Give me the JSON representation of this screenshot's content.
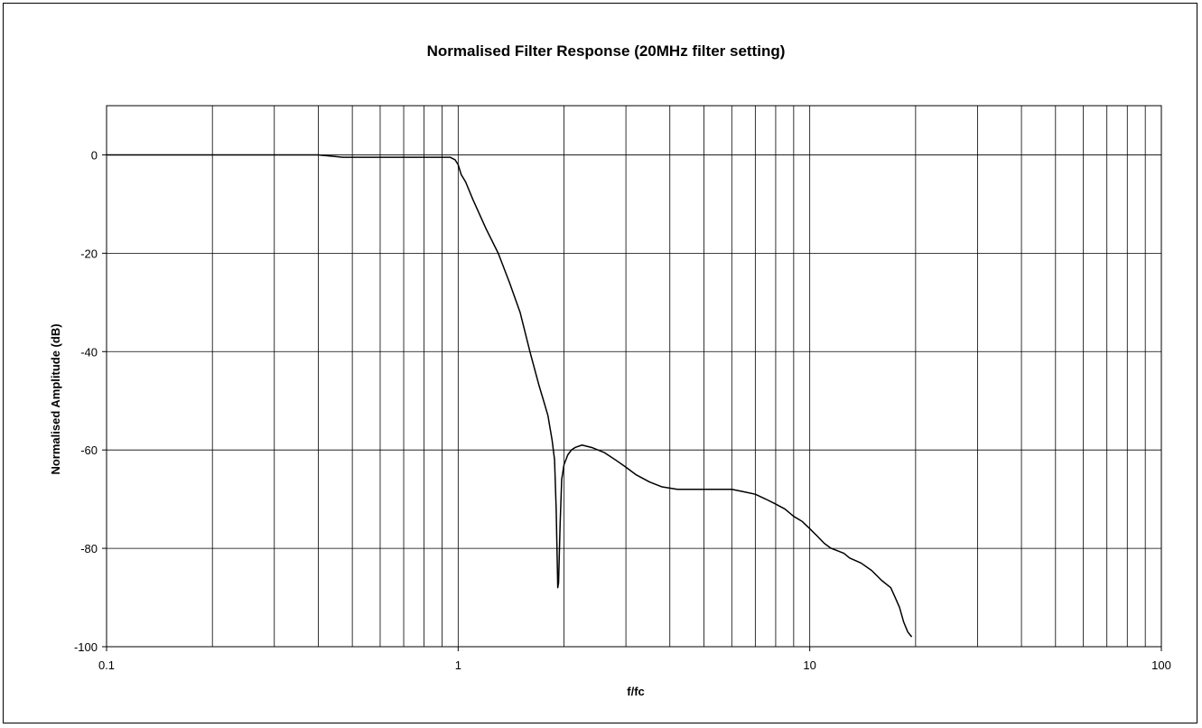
{
  "chart_data": {
    "type": "line",
    "title": "Normalised Filter Response (20MHz filter setting)",
    "xlabel": "f/fc",
    "ylabel": "Normalised Amplitude (dB)",
    "x_scale": "log",
    "xlim": [
      0.1,
      100
    ],
    "ylim": [
      -100,
      10
    ],
    "x_ticks": [
      0.1,
      1,
      10,
      100
    ],
    "x_tick_labels": [
      "0.1",
      "1",
      "10",
      "100"
    ],
    "y_ticks": [
      0,
      -20,
      -40,
      -60,
      -80,
      -100
    ],
    "y_tick_labels": [
      "0",
      "-20",
      "-40",
      "-60",
      "-80",
      "-100"
    ],
    "grid": true,
    "legend": "none",
    "colors": {
      "line": "#000000",
      "grid": "#000000",
      "background": "#ffffff"
    },
    "series": [
      {
        "x": [
          0.1,
          0.2,
          0.3,
          0.4,
          0.47,
          0.6,
          0.8,
          0.9,
          0.95,
          0.98,
          1.0,
          1.02,
          1.05,
          1.1,
          1.2,
          1.3,
          1.4,
          1.5,
          1.6,
          1.7,
          1.75,
          1.8,
          1.85,
          1.88,
          1.9,
          1.92,
          1.93,
          1.95,
          1.97,
          2.0,
          2.05,
          2.1,
          2.15,
          2.25,
          2.4,
          2.6,
          2.8,
          3.0,
          3.2,
          3.5,
          3.8,
          4.2,
          4.6,
          5.0,
          5.5,
          6.0,
          6.5,
          7.0,
          7.5,
          8.0,
          8.5,
          9.0,
          9.5,
          10.0,
          10.5,
          11.0,
          11.5,
          12.0,
          12.5,
          13.0,
          13.5,
          14.0,
          15.0,
          16.0,
          17.0,
          17.5,
          18.0,
          18.5,
          19.0,
          19.5
        ],
        "y": [
          0,
          0,
          0,
          0,
          -0.5,
          -0.5,
          -0.5,
          -0.5,
          -0.5,
          -1.0,
          -2.0,
          -4.0,
          -5.5,
          -9.0,
          -15.0,
          -20.0,
          -26.0,
          -32.0,
          -40.0,
          -47.0,
          -50.0,
          -53.0,
          -58.0,
          -62.0,
          -72.0,
          -88.0,
          -87.0,
          -75.0,
          -66.0,
          -63.0,
          -61.0,
          -60.0,
          -59.5,
          -59.0,
          -59.5,
          -60.5,
          -62.0,
          -63.5,
          -65.0,
          -66.5,
          -67.5,
          -68.0,
          -68.0,
          -68.0,
          -68.0,
          -68.0,
          -68.5,
          -69.0,
          -70.0,
          -71.0,
          -72.0,
          -73.5,
          -74.5,
          -76.0,
          -77.5,
          -79.0,
          -80.0,
          -80.5,
          -81.0,
          -82.0,
          -82.5,
          -83.0,
          -84.5,
          -86.5,
          -88.0,
          -90.0,
          -92.0,
          -95.0,
          -97.0,
          -98.0
        ]
      }
    ]
  }
}
